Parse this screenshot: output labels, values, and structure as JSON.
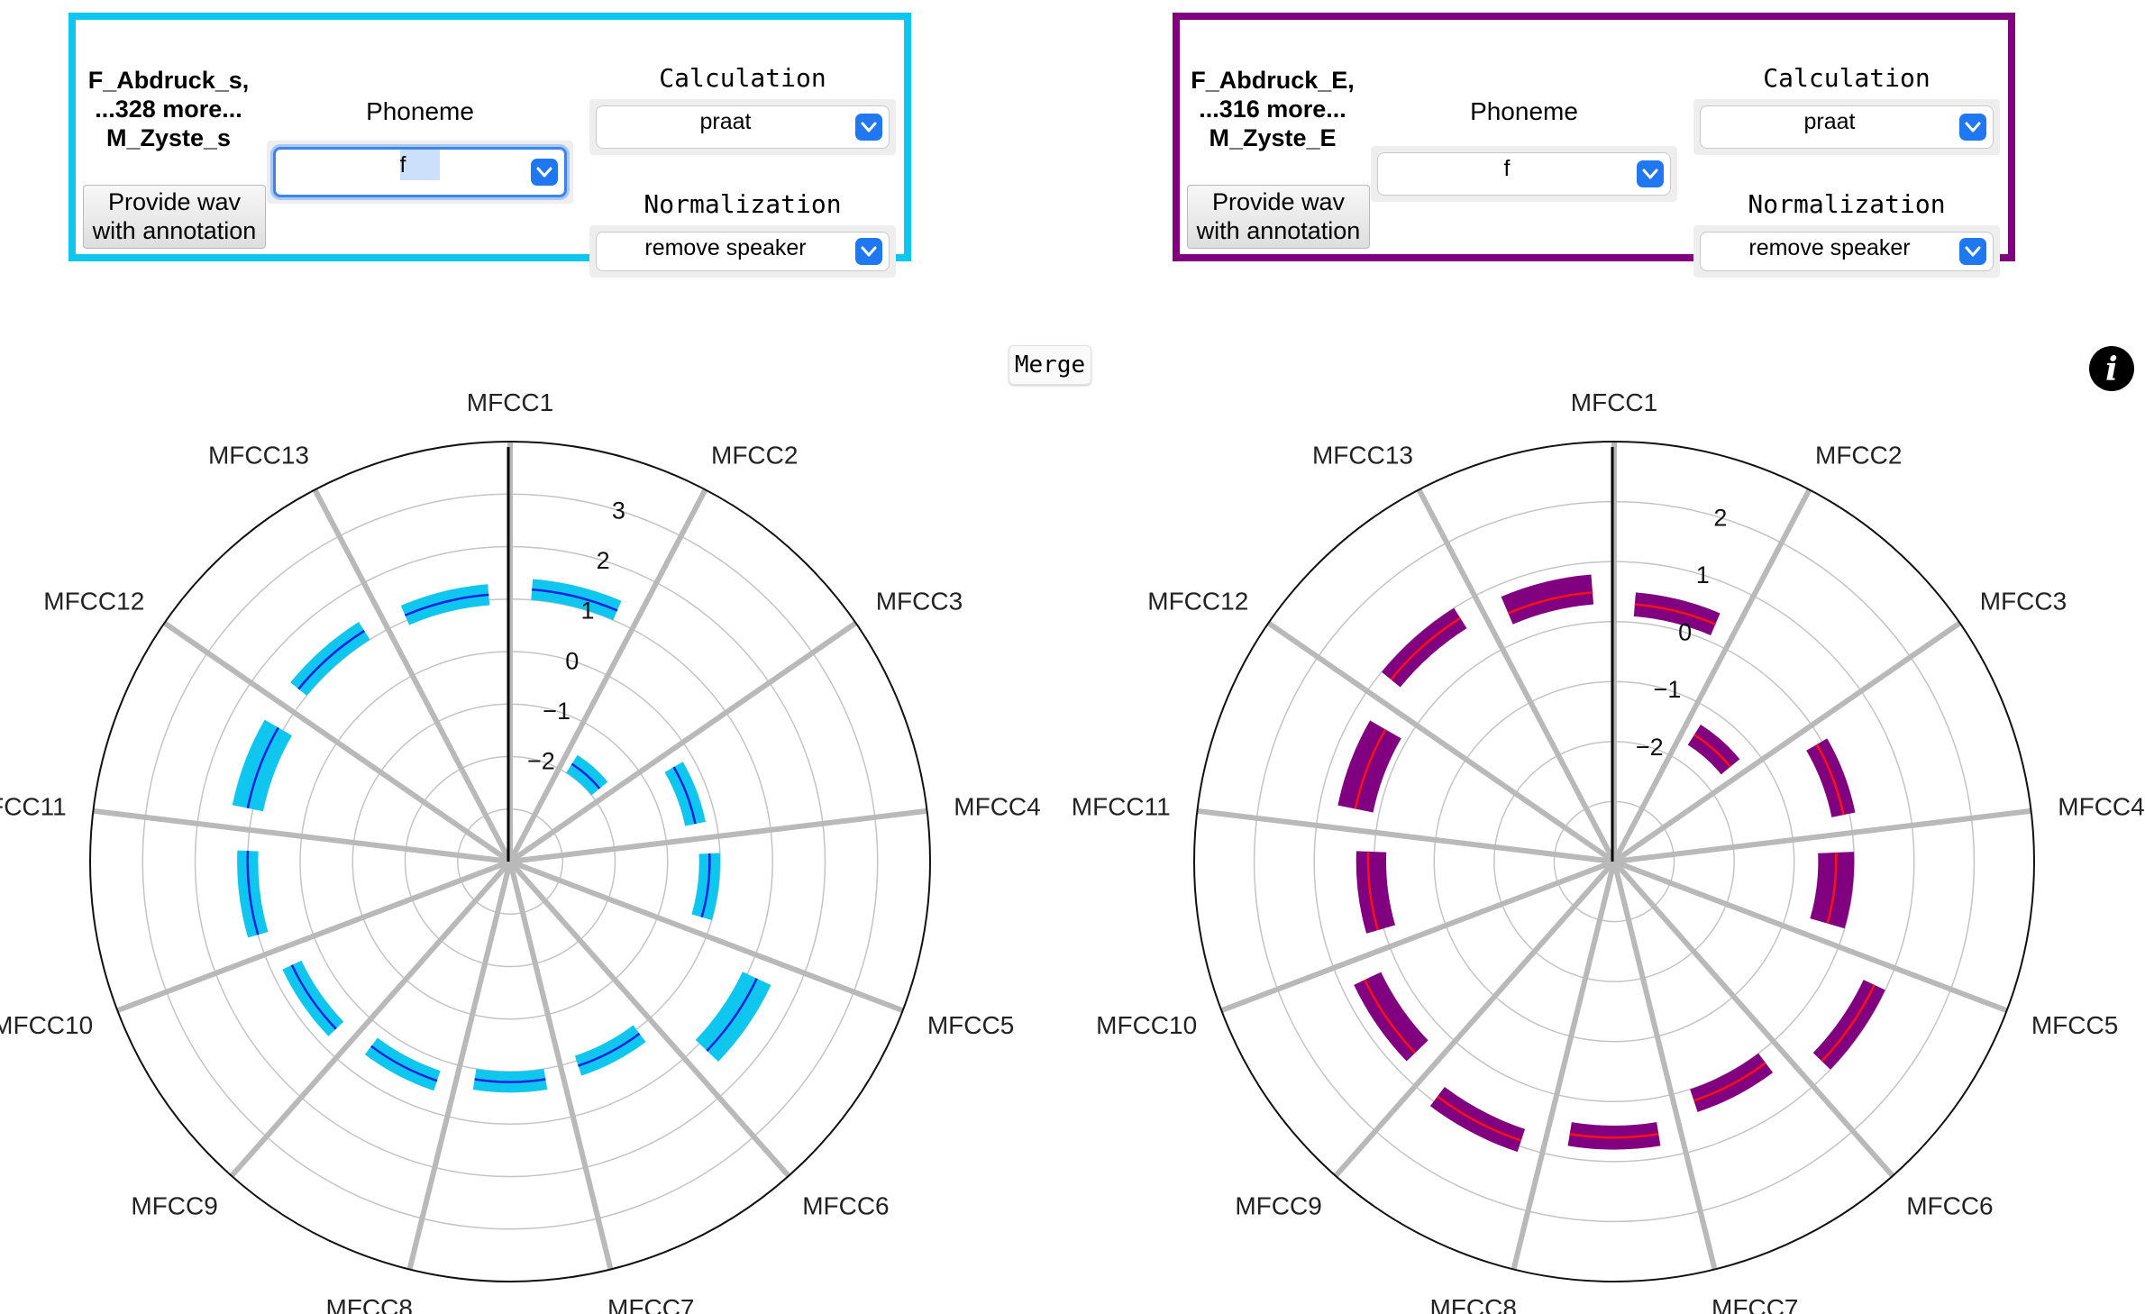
{
  "merge_label": "Merge",
  "info_icon": "info-icon",
  "panels": [
    {
      "id": "left",
      "border_color": "#0fc6ef",
      "speakers": [
        "F_Abdruck_s,",
        "...328 more...",
        "M_Zyste_s"
      ],
      "wav_button": [
        "Provide wav",
        "with annotation"
      ],
      "phoneme_label": "Phoneme",
      "phoneme_value": "f",
      "calculation_label": "Calculation",
      "calculation_value": "praat",
      "normalization_label": "Normalization",
      "normalization_value": "remove speaker"
    },
    {
      "id": "right",
      "border_color": "#800080",
      "speakers": [
        "F_Abdruck_E,",
        "...316 more...",
        "M_Zyste_E"
      ],
      "wav_button": [
        "Provide wav",
        "with annotation"
      ],
      "phoneme_label": "Phoneme",
      "phoneme_value": "f",
      "calculation_label": "Calculation",
      "calculation_value": "praat",
      "normalization_label": "Normalization",
      "normalization_value": "remove speaker"
    }
  ],
  "chart_data": [
    {
      "type": "polar-area",
      "axes": [
        "MFCC1",
        "MFCC2",
        "MFCC3",
        "MFCC4",
        "MFCC5",
        "MFCC6",
        "MFCC7",
        "MFCC8",
        "MFCC9",
        "MFCC10",
        "MFCC11",
        "MFCC12",
        "MFCC13"
      ],
      "rlim": [
        -4,
        4
      ],
      "radial_ticks": [
        -2,
        -1,
        0,
        1,
        2,
        3
      ],
      "grid": true,
      "band_color": "#0fc6ef",
      "line_color": "#1020e0",
      "mean": [
        1.2,
        -1.8,
        -0.4,
        -0.2,
        1.2,
        0.1,
        0.2,
        0.4,
        0.6,
        1.0,
        1.1,
        1.2,
        1.1
      ],
      "lower": [
        1.0,
        -2.0,
        -0.6,
        -0.4,
        0.9,
        -0.1,
        0.0,
        0.2,
        0.4,
        0.8,
        0.8,
        1.0,
        0.9
      ],
      "upper": [
        1.4,
        -1.6,
        -0.2,
        0.0,
        1.5,
        0.3,
        0.4,
        0.6,
        0.8,
        1.2,
        1.4,
        1.4,
        1.3
      ]
    },
    {
      "type": "polar-area",
      "axes": [
        "MFCC1",
        "MFCC2",
        "MFCC3",
        "MFCC4",
        "MFCC5",
        "MFCC6",
        "MFCC7",
        "MFCC8",
        "MFCC9",
        "MFCC10",
        "MFCC11",
        "MFCC12",
        "MFCC13"
      ],
      "rlim": [
        -4,
        3
      ],
      "radial_ticks": [
        -2,
        -1,
        0,
        1,
        2
      ],
      "grid": true,
      "band_color": "#800080",
      "line_color": "#ff1010",
      "mean": [
        0.3,
        -1.5,
        -0.1,
        -0.3,
        0.8,
        0.2,
        0.6,
        0.9,
        0.6,
        0.1,
        0.4,
        0.8,
        0.5
      ],
      "lower": [
        0.1,
        -1.7,
        -0.3,
        -0.6,
        0.6,
        0.0,
        0.4,
        0.7,
        0.3,
        -0.2,
        0.1,
        0.6,
        0.3
      ],
      "upper": [
        0.5,
        -1.3,
        0.1,
        0.0,
        1.0,
        0.4,
        0.8,
        1.1,
        0.8,
        0.3,
        0.7,
        1.0,
        0.8
      ]
    }
  ]
}
